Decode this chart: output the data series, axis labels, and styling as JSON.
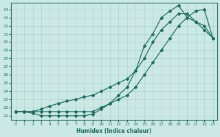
{
  "xlabel": "Humidex (Indice chaleur)",
  "background_color": "#cce8e4",
  "grid_color": "#aad4cc",
  "line_color": "#1a6e62",
  "xlim": [
    -0.5,
    23.5
  ],
  "ylim": [
    20.5,
    34.8
  ],
  "xticks": [
    0,
    1,
    2,
    3,
    4,
    5,
    6,
    7,
    8,
    9,
    10,
    11,
    12,
    13,
    14,
    15,
    16,
    17,
    18,
    19,
    20,
    21,
    22,
    23
  ],
  "yticks": [
    21,
    22,
    23,
    24,
    25,
    26,
    27,
    28,
    29,
    30,
    31,
    32,
    33,
    34
  ],
  "curve1_x": [
    0,
    1,
    2,
    3,
    4,
    5,
    6,
    7,
    8,
    9,
    10,
    11,
    12,
    13,
    14,
    15,
    16,
    17,
    18,
    19,
    20,
    21,
    22,
    23
  ],
  "curve1_y": [
    21.5,
    21.5,
    21.5,
    21.8,
    22.2,
    22.5,
    22.8,
    23.0,
    23.3,
    23.5,
    24.0,
    24.5,
    25.0,
    25.5,
    26.5,
    28.0,
    30.0,
    31.5,
    32.5,
    33.5,
    33.5,
    32.5,
    31.5,
    30.5
  ],
  "curve2_x": [
    0,
    1,
    2,
    3,
    4,
    5,
    6,
    7,
    8,
    9,
    10,
    11,
    12,
    13,
    14,
    15,
    16,
    17,
    18,
    19,
    20,
    21,
    22,
    23
  ],
  "curve2_y": [
    21.5,
    21.5,
    21.3,
    21.0,
    21.0,
    21.0,
    21.0,
    21.0,
    21.0,
    21.2,
    21.8,
    22.5,
    23.5,
    24.5,
    26.5,
    29.5,
    31.0,
    33.0,
    33.8,
    34.5,
    33.0,
    32.5,
    32.0,
    30.5
  ],
  "curve3_x": [
    0,
    1,
    2,
    3,
    4,
    5,
    6,
    7,
    8,
    9,
    10,
    11,
    12,
    13,
    14,
    15,
    16,
    17,
    18,
    19,
    20,
    21,
    22,
    23
  ],
  "curve3_y": [
    21.5,
    21.5,
    21.5,
    21.5,
    21.5,
    21.5,
    21.5,
    21.5,
    21.5,
    21.5,
    22.0,
    22.5,
    23.0,
    23.5,
    24.5,
    26.0,
    27.5,
    29.0,
    30.5,
    32.0,
    33.0,
    33.8,
    34.0,
    30.5
  ]
}
